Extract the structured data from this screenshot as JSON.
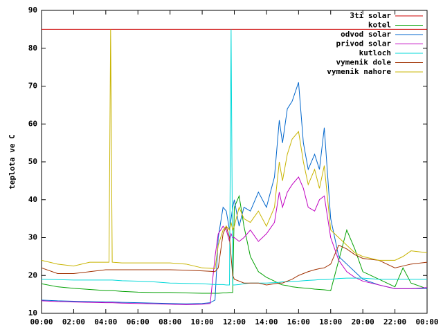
{
  "chart_data": {
    "type": "line",
    "y_label": "teplota ve C",
    "x": [
      0,
      1,
      2,
      3,
      4,
      4.2,
      4.3,
      4.4,
      5,
      6,
      7,
      8,
      9,
      10,
      10.5,
      10.8,
      11,
      11.3,
      11.5,
      11.7,
      11.8,
      11.9,
      12,
      12.3,
      12.6,
      13,
      13.5,
      14,
      14.5,
      14.8,
      15,
      15.3,
      15.6,
      16,
      16.3,
      16.6,
      17,
      17.3,
      17.6,
      18,
      18.5,
      19,
      19.5,
      20,
      21,
      22,
      22.5,
      23,
      24
    ],
    "xlim": [
      0,
      24
    ],
    "xticks": [
      {
        "value": 0,
        "label": "00:00"
      },
      {
        "value": 2,
        "label": "02:00"
      },
      {
        "value": 4,
        "label": "04:00"
      },
      {
        "value": 6,
        "label": "06:00"
      },
      {
        "value": 8,
        "label": "08:00"
      },
      {
        "value": 10,
        "label": "10:00"
      },
      {
        "value": 12,
        "label": "12:00"
      },
      {
        "value": 14,
        "label": "14:00"
      },
      {
        "value": 16,
        "label": "16:00"
      },
      {
        "value": 18,
        "label": "18:00"
      },
      {
        "value": 20,
        "label": "20:00"
      },
      {
        "value": 22,
        "label": "22:00"
      },
      {
        "value": 24,
        "label": "00:00"
      }
    ],
    "ylim": [
      10,
      90
    ],
    "yticks": [
      10,
      20,
      30,
      40,
      50,
      60,
      70,
      80,
      90
    ],
    "legend": "top-right",
    "series": [
      {
        "name": "3ti solar",
        "color": "#cc0000",
        "values": [
          85,
          85,
          85,
          85,
          85,
          85,
          85,
          85,
          85,
          85,
          85,
          85,
          85,
          85,
          85,
          85,
          85,
          85,
          85,
          85,
          85,
          85,
          85,
          85,
          85,
          85,
          85,
          85,
          85,
          85,
          85,
          85,
          85,
          85,
          85,
          85,
          85,
          85,
          85,
          85,
          85,
          85,
          85,
          85,
          85,
          85,
          85,
          85,
          85
        ]
      },
      {
        "name": "kotel",
        "color": "#00a000",
        "values": [
          17.8,
          17,
          16.6,
          16.3,
          16,
          16,
          16,
          16,
          15.8,
          15.6,
          15.5,
          15.5,
          15.4,
          15.3,
          15.3,
          15.3,
          15.3,
          15.4,
          15.4,
          15.5,
          15.5,
          15.5,
          38,
          41,
          33,
          25,
          21,
          19.5,
          18.5,
          17.8,
          17.5,
          17.3,
          17,
          16.8,
          16.7,
          16.6,
          16.4,
          16.3,
          16.2,
          16,
          24,
          32,
          27,
          21,
          19,
          17,
          22,
          18,
          16.5
        ]
      },
      {
        "name": "odvod solar",
        "color": "#0066cc",
        "values": [
          13.5,
          13.3,
          13.2,
          13.1,
          13,
          13,
          13,
          13,
          12.9,
          12.8,
          12.7,
          12.6,
          12.5,
          12.6,
          12.8,
          13.5,
          30,
          38,
          37,
          32,
          35,
          38,
          40,
          33,
          38,
          37,
          42,
          38,
          46,
          61,
          55,
          64,
          66,
          71,
          55,
          48,
          52,
          48,
          59,
          35,
          25,
          23,
          21,
          19,
          17.5,
          16.5,
          16.5,
          16.5,
          16.6
        ]
      },
      {
        "name": "privod solar",
        "color": "#c000c0",
        "values": [
          13.3,
          13.1,
          13,
          12.9,
          12.8,
          12.8,
          12.8,
          12.8,
          12.7,
          12.6,
          12.5,
          12.4,
          12.3,
          12.4,
          12.6,
          25,
          31,
          33,
          32,
          29,
          31,
          30,
          30,
          29,
          30,
          32,
          29,
          31,
          34,
          42,
          38,
          42,
          44,
          46,
          43,
          38,
          37,
          40,
          41,
          30,
          24,
          21,
          19.5,
          18.5,
          17.5,
          16.5,
          16.5,
          16.5,
          16.8
        ]
      },
      {
        "name": "kutloch",
        "color": "#00d8d8",
        "values": [
          19,
          18.9,
          18.8,
          18.8,
          18.8,
          18.8,
          18.8,
          18.8,
          18.6,
          18.5,
          18.3,
          18,
          17.9,
          17.8,
          17.7,
          17.6,
          17.6,
          17.6,
          17.5,
          17.5,
          85,
          17.5,
          17.5,
          17.6,
          17.8,
          18,
          18,
          18,
          18.1,
          18.2,
          18.3,
          18.3,
          18.4,
          18.5,
          18.6,
          18.7,
          18.8,
          18.9,
          18.9,
          19,
          19.2,
          19.3,
          19.3,
          19.3,
          19,
          19,
          19,
          19,
          19
        ]
      },
      {
        "name": "vymenik dole",
        "color": "#a03000",
        "values": [
          22,
          20.5,
          20.5,
          21,
          21.5,
          21.5,
          21.5,
          21.5,
          21.5,
          21.5,
          21.5,
          21.5,
          21.4,
          21.2,
          21.1,
          21,
          22,
          31,
          33,
          30,
          25,
          20,
          19,
          18.5,
          18,
          18,
          18,
          17.5,
          17.8,
          18,
          18,
          18.5,
          19,
          20,
          20.5,
          21,
          21.5,
          21.8,
          22,
          23,
          28,
          27,
          25.5,
          24.5,
          24,
          22,
          22.5,
          23,
          23.5
        ]
      },
      {
        "name": "vymenik nahore",
        "color": "#c8b400",
        "values": [
          24,
          23,
          22.5,
          23.5,
          23.5,
          23.5,
          85,
          23.5,
          23.3,
          23.3,
          23.3,
          23.3,
          23,
          22,
          21.9,
          21.8,
          28,
          32,
          33,
          32,
          34,
          32,
          33,
          38,
          35,
          34,
          37,
          33,
          38,
          50,
          45,
          52,
          56,
          58,
          50,
          44,
          48,
          43,
          49,
          32,
          30,
          28,
          26,
          25,
          24,
          24,
          25,
          26.5,
          26
        ]
      }
    ]
  }
}
